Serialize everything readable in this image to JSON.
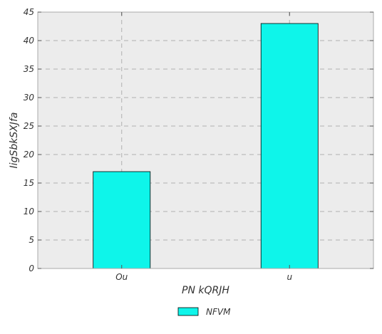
{
  "chart_data": {
    "type": "bar",
    "categories": [
      "Ou",
      "u"
    ],
    "series": [
      {
        "name": "NFVM",
        "values": [
          17,
          43
        ],
        "color": "#0ef5ea"
      }
    ],
    "xlabel": "PN kQRJH",
    "ylabel": "IigSbkSXJfa",
    "ylim": [
      0,
      45
    ],
    "yticks": [
      "0",
      "5",
      "10",
      "15",
      "20",
      "25",
      "30",
      "35",
      "40",
      "45"
    ],
    "grid": true,
    "legend_position": "bottom-center",
    "plot_background": "#ececec",
    "bar_edge_color": "#000000",
    "grid_color": "#b0b0b0"
  }
}
